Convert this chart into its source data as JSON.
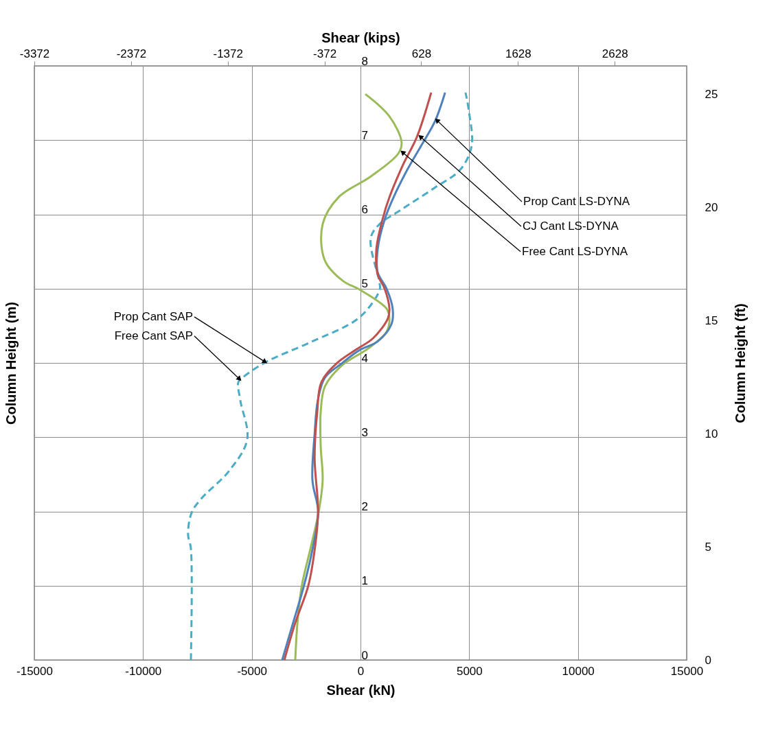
{
  "chart_data": {
    "type": "line",
    "xlabel": "Shear (kN)",
    "ylabel": "Column Height (m)",
    "x2label": "Shear (kips)",
    "y2label": "Column Height (ft)",
    "xlim": [
      -15000,
      15000
    ],
    "xticks": [
      -15000,
      -10000,
      -5000,
      0,
      5000,
      10000,
      15000
    ],
    "x2lim": [
      -3372,
      3372
    ],
    "x2ticks": [
      -3372,
      -2372,
      -1372,
      -372,
      628,
      1628,
      2628
    ],
    "ylim": [
      0,
      8
    ],
    "yticks": [
      0,
      1,
      2,
      3,
      4,
      5,
      6,
      7,
      8
    ],
    "y2lim": [
      0,
      26.25
    ],
    "y2ticks": [
      0,
      5,
      10,
      15,
      20,
      25
    ],
    "grid": true,
    "series": [
      {
        "type": "line",
        "color": "#4bacc6",
        "line_style": "dashed",
        "x": [
          -7800,
          -7800,
          -7930,
          -7770,
          -7330,
          -6060,
          -5210,
          -5530,
          -5620,
          -5430,
          -4360,
          -2370,
          -60,
          880,
          880,
          470,
          880,
          1640,
          3420,
          4580,
          5110,
          4990,
          4830
        ],
        "values": [
          0,
          1.5,
          1.69,
          1.98,
          2.17,
          2.54,
          2.97,
          3.5,
          3.74,
          3.8,
          4.01,
          4.27,
          4.61,
          4.98,
          5.07,
          5.68,
          5.87,
          6.02,
          6.36,
          6.6,
          6.92,
          7.38,
          7.64
        ]
      },
      {
        "type": "line",
        "color": "#9bbb59",
        "line_style": "solid",
        "x": [
          -3000,
          -2900,
          -2700,
          -2300,
          -1920,
          -1740,
          -1830,
          -1830,
          -1640,
          -880,
          380,
          1200,
          1330,
          1200,
          -60,
          -790,
          -1640,
          -1740,
          -1010,
          470,
          1740,
          1890,
          1330,
          220
        ],
        "values": [
          0,
          0.5,
          1,
          1.5,
          2,
          2.42,
          2.88,
          3.34,
          3.68,
          3.96,
          4.2,
          4.42,
          4.6,
          4.73,
          4.99,
          5.1,
          5.38,
          5.87,
          6.23,
          6.51,
          6.82,
          6.97,
          7.32,
          7.62
        ]
      },
      {
        "type": "line",
        "color": "#4f81bd",
        "line_style": "solid",
        "x": [
          -3600,
          -3100,
          -2600,
          -2200,
          -1950,
          -2210,
          -2110,
          -1960,
          -1640,
          -880,
          -60,
          790,
          1420,
          1480,
          1200,
          790,
          790,
          1110,
          1520,
          2150,
          2780,
          3420,
          3890
        ],
        "values": [
          0,
          0.5,
          1,
          1.5,
          2,
          2.42,
          3.04,
          3.5,
          3.8,
          3.99,
          4.17,
          4.29,
          4.52,
          4.73,
          5,
          5.22,
          5.53,
          5.93,
          6.23,
          6.6,
          6.92,
          7.25,
          7.64
        ]
      },
      {
        "type": "line",
        "color": "#c0504d",
        "line_style": "solid",
        "x": [
          -3500,
          -3000,
          -2400,
          -2100,
          -1950,
          -2110,
          -1990,
          -1800,
          -1110,
          -250,
          570,
          1260,
          1330,
          1110,
          790,
          730,
          1010,
          1330,
          1960,
          2590,
          3250
        ],
        "values": [
          0,
          0.5,
          1,
          1.5,
          2,
          2.72,
          3.34,
          3.74,
          3.99,
          4.17,
          4.33,
          4.6,
          4.73,
          5,
          5.19,
          5.53,
          5.93,
          6.23,
          6.67,
          7.04,
          7.64
        ]
      }
    ],
    "annotations": [
      {
        "text": "Prop Cant LS-DYNA",
        "x": 3540,
        "y": 7.26
      },
      {
        "text": "CJ Cant LS-DYNA",
        "x": 2780,
        "y": 7.04
      },
      {
        "text": "Free Cant LS-DYNA",
        "x": 1960,
        "y": 6.83
      },
      {
        "text": "Prop Cant SAP",
        "x": -4420,
        "y": 4.02
      },
      {
        "text": "Free Cant SAP",
        "x": -5590,
        "y": 3.79
      }
    ]
  }
}
